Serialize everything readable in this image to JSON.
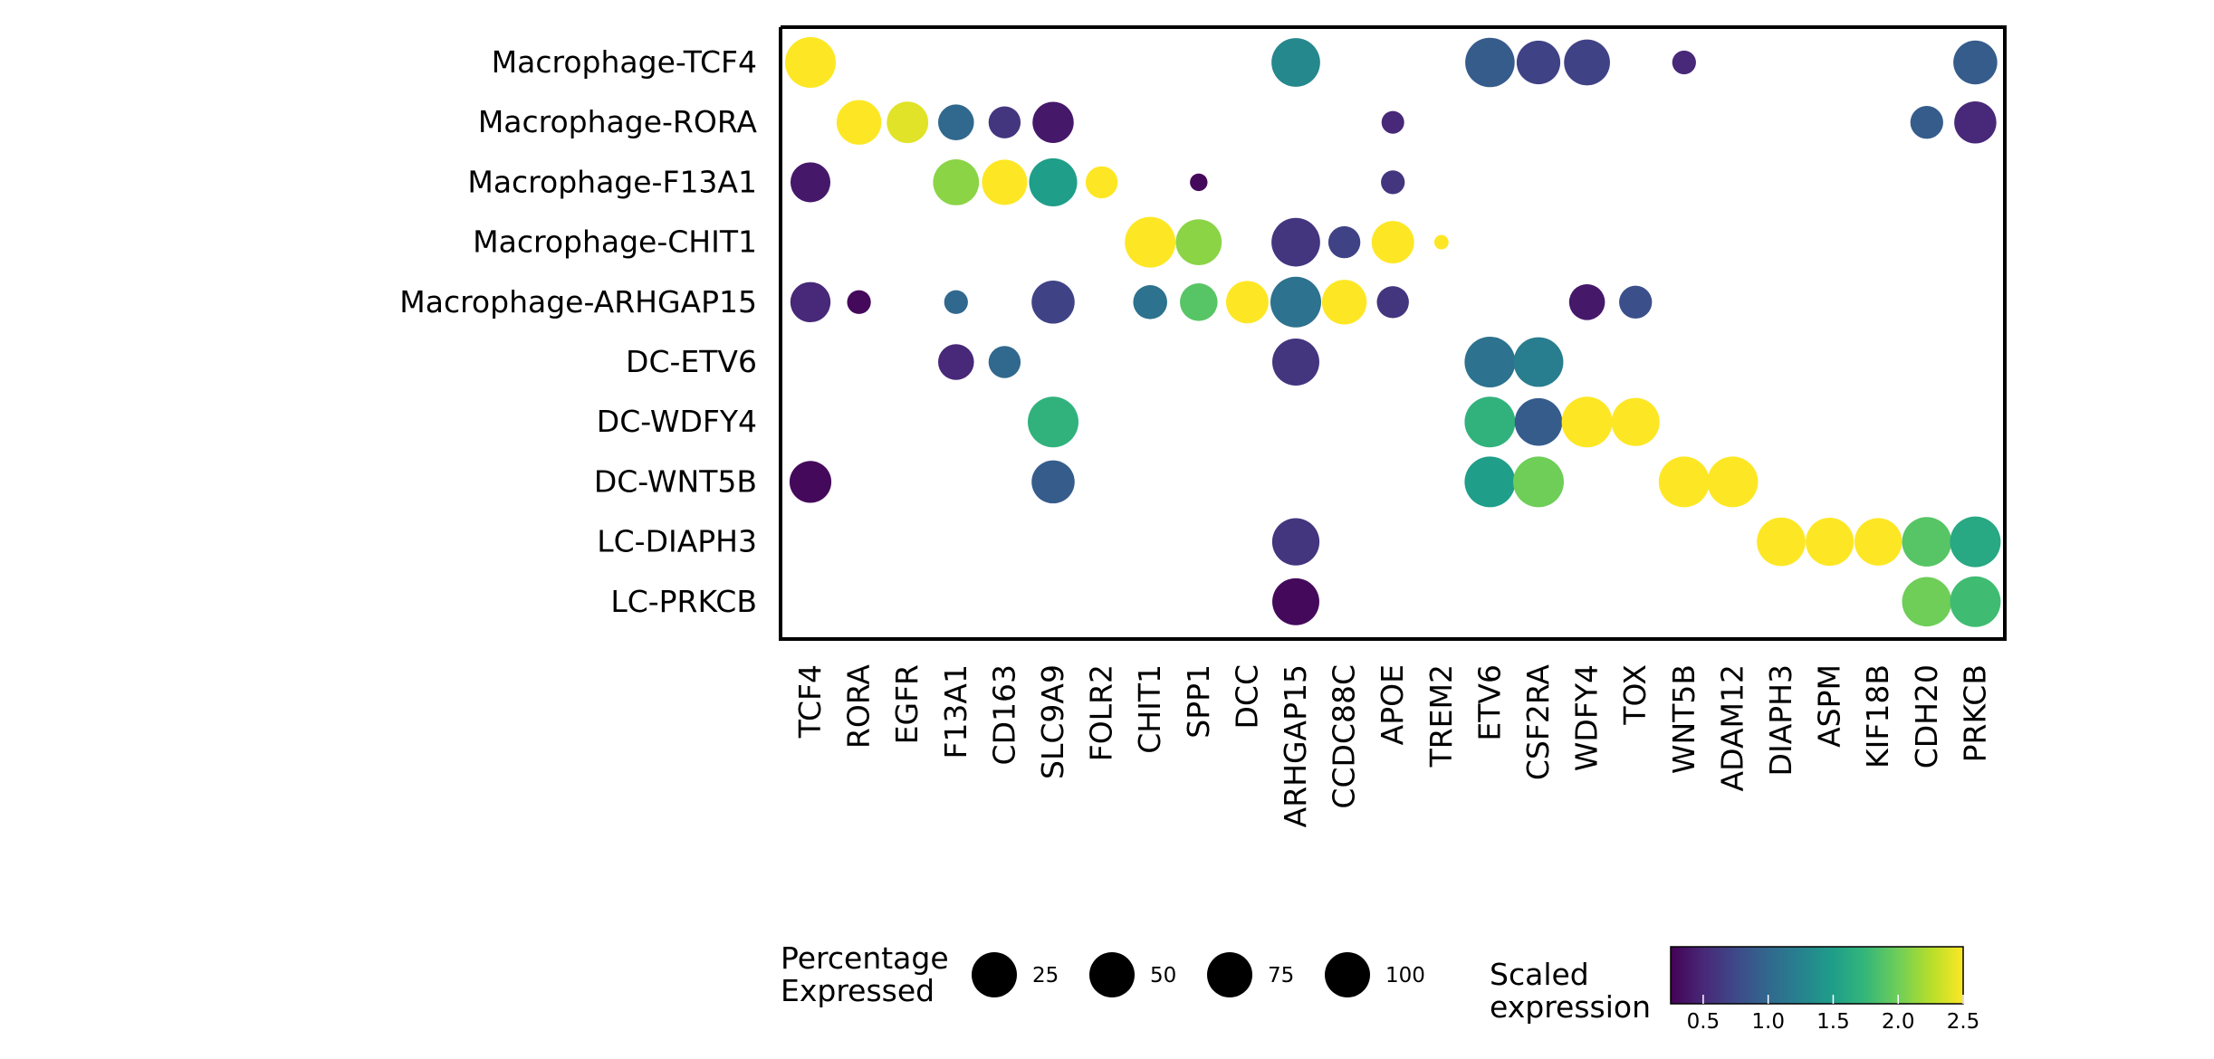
{
  "chart_data": {
    "type": "dotplot",
    "rows": [
      "Macrophage-TCF4",
      "Macrophage-RORA",
      "Macrophage-F13A1",
      "Macrophage-CHIT1",
      "Macrophage-ARHGAP15",
      "DC-ETV6",
      "DC-WDFY4",
      "DC-WNT5B",
      "LC-DIAPH3",
      "LC-PRKCB"
    ],
    "columns": [
      "TCF4",
      "RORA",
      "EGFR",
      "F13A1",
      "CD163",
      "SLC9A9",
      "FOLR2",
      "CHIT1",
      "SPP1",
      "DCC",
      "ARHGAP15",
      "CCDC88C",
      "APOE",
      "TREM2",
      "ETV6",
      "CSF2RA",
      "WDFY4",
      "TOX",
      "WNT5B",
      "ADAM12",
      "DIAPH3",
      "ASPM",
      "KIF18B",
      "CDH20",
      "PRKCB"
    ],
    "points": [
      {
        "row": "Macrophage-TCF4",
        "col": "TCF4",
        "pct": 100,
        "expr": 2.5
      },
      {
        "row": "Macrophage-TCF4",
        "col": "ARHGAP15",
        "pct": 92,
        "expr": 1.3
      },
      {
        "row": "Macrophage-TCF4",
        "col": "ETV6",
        "pct": 95,
        "expr": 0.9
      },
      {
        "row": "Macrophage-TCF4",
        "col": "CSF2RA",
        "pct": 74,
        "expr": 0.7
      },
      {
        "row": "Macrophage-TCF4",
        "col": "WDFY4",
        "pct": 82,
        "expr": 0.7
      },
      {
        "row": "Macrophage-TCF4",
        "col": "WNT5B",
        "pct": 22,
        "expr": 0.5
      },
      {
        "row": "Macrophage-TCF4",
        "col": "PRKCB",
        "pct": 75,
        "expr": 0.9
      },
      {
        "row": "Macrophage-RORA",
        "col": "RORA",
        "pct": 78,
        "expr": 2.5
      },
      {
        "row": "Macrophage-RORA",
        "col": "EGFR",
        "pct": 67,
        "expr": 2.4
      },
      {
        "row": "Macrophage-RORA",
        "col": "F13A1",
        "pct": 50,
        "expr": 1.0
      },
      {
        "row": "Macrophage-RORA",
        "col": "CD163",
        "pct": 40,
        "expr": 0.6
      },
      {
        "row": "Macrophage-RORA",
        "col": "SLC9A9",
        "pct": 66,
        "expr": 0.4
      },
      {
        "row": "Macrophage-RORA",
        "col": "APOE",
        "pct": 20,
        "expr": 0.5
      },
      {
        "row": "Macrophage-RORA",
        "col": "CDH20",
        "pct": 42,
        "expr": 0.9
      },
      {
        "row": "Macrophage-RORA",
        "col": "PRKCB",
        "pct": 69,
        "expr": 0.5
      },
      {
        "row": "Macrophage-F13A1",
        "col": "TCF4",
        "pct": 62,
        "expr": 0.4
      },
      {
        "row": "Macrophage-F13A1",
        "col": "F13A1",
        "pct": 82,
        "expr": 2.1
      },
      {
        "row": "Macrophage-F13A1",
        "col": "CD163",
        "pct": 80,
        "expr": 2.5
      },
      {
        "row": "Macrophage-F13A1",
        "col": "SLC9A9",
        "pct": 90,
        "expr": 1.5
      },
      {
        "row": "Macrophage-F13A1",
        "col": "FOLR2",
        "pct": 40,
        "expr": 2.5
      },
      {
        "row": "Macrophage-F13A1",
        "col": "SPP1",
        "pct": 12,
        "expr": 0.3
      },
      {
        "row": "Macrophage-F13A1",
        "col": "APOE",
        "pct": 22,
        "expr": 0.6
      },
      {
        "row": "Macrophage-CHIT1",
        "col": "CHIT1",
        "pct": 100,
        "expr": 2.5
      },
      {
        "row": "Macrophage-CHIT1",
        "col": "SPP1",
        "pct": 82,
        "expr": 2.1
      },
      {
        "row": "Macrophage-CHIT1",
        "col": "ARHGAP15",
        "pct": 92,
        "expr": 0.6
      },
      {
        "row": "Macrophage-CHIT1",
        "col": "CCDC88C",
        "pct": 40,
        "expr": 0.7
      },
      {
        "row": "Macrophage-CHIT1",
        "col": "APOE",
        "pct": 70,
        "expr": 2.5
      },
      {
        "row": "Macrophage-CHIT1",
        "col": "TREM2",
        "pct": 8,
        "expr": 2.5
      },
      {
        "row": "Macrophage-ARHGAP15",
        "col": "TCF4",
        "pct": 63,
        "expr": 0.5
      },
      {
        "row": "Macrophage-ARHGAP15",
        "col": "RORA",
        "pct": 22,
        "expr": 0.3
      },
      {
        "row": "Macrophage-ARHGAP15",
        "col": "F13A1",
        "pct": 22,
        "expr": 1.0
      },
      {
        "row": "Macrophage-ARHGAP15",
        "col": "SLC9A9",
        "pct": 72,
        "expr": 0.7
      },
      {
        "row": "Macrophage-ARHGAP15",
        "col": "CHIT1",
        "pct": 45,
        "expr": 1.1
      },
      {
        "row": "Macrophage-ARHGAP15",
        "col": "SPP1",
        "pct": 55,
        "expr": 1.9
      },
      {
        "row": "Macrophage-ARHGAP15",
        "col": "DCC",
        "pct": 70,
        "expr": 2.5
      },
      {
        "row": "Macrophage-ARHGAP15",
        "col": "ARHGAP15",
        "pct": 100,
        "expr": 1.1
      },
      {
        "row": "Macrophage-ARHGAP15",
        "col": "CCDC88C",
        "pct": 78,
        "expr": 2.5
      },
      {
        "row": "Macrophage-ARHGAP15",
        "col": "APOE",
        "pct": 40,
        "expr": 0.6
      },
      {
        "row": "Macrophage-ARHGAP15",
        "col": "WDFY4",
        "pct": 50,
        "expr": 0.4
      },
      {
        "row": "Macrophage-ARHGAP15",
        "col": "TOX",
        "pct": 42,
        "expr": 0.8
      },
      {
        "row": "DC-ETV6",
        "col": "F13A1",
        "pct": 50,
        "expr": 0.5
      },
      {
        "row": "DC-ETV6",
        "col": "CD163",
        "pct": 40,
        "expr": 1.0
      },
      {
        "row": "DC-ETV6",
        "col": "ARHGAP15",
        "pct": 86,
        "expr": 0.6
      },
      {
        "row": "DC-ETV6",
        "col": "ETV6",
        "pct": 100,
        "expr": 1.1
      },
      {
        "row": "DC-ETV6",
        "col": "CSF2RA",
        "pct": 96,
        "expr": 1.2
      },
      {
        "row": "DC-WDFY4",
        "col": "SLC9A9",
        "pct": 100,
        "expr": 1.7
      },
      {
        "row": "DC-WDFY4",
        "col": "ETV6",
        "pct": 100,
        "expr": 1.7
      },
      {
        "row": "DC-WDFY4",
        "col": "CSF2RA",
        "pct": 88,
        "expr": 0.9
      },
      {
        "row": "DC-WDFY4",
        "col": "WDFY4",
        "pct": 100,
        "expr": 2.5
      },
      {
        "row": "DC-WDFY4",
        "col": "TOX",
        "pct": 90,
        "expr": 2.5
      },
      {
        "row": "DC-WNT5B",
        "col": "TCF4",
        "pct": 68,
        "expr": 0.3
      },
      {
        "row": "DC-WNT5B",
        "col": "SLC9A9",
        "pct": 72,
        "expr": 0.9
      },
      {
        "row": "DC-WNT5B",
        "col": "ETV6",
        "pct": 100,
        "expr": 1.5
      },
      {
        "row": "DC-WNT5B",
        "col": "CSF2RA",
        "pct": 100,
        "expr": 2.0
      },
      {
        "row": "DC-WNT5B",
        "col": "WNT5B",
        "pct": 100,
        "expr": 2.5
      },
      {
        "row": "DC-WNT5B",
        "col": "ADAM12",
        "pct": 100,
        "expr": 2.5
      },
      {
        "row": "LC-DIAPH3",
        "col": "ARHGAP15",
        "pct": 87,
        "expr": 0.6
      },
      {
        "row": "LC-DIAPH3",
        "col": "DIAPH3",
        "pct": 92,
        "expr": 2.5
      },
      {
        "row": "LC-DIAPH3",
        "col": "ASPM",
        "pct": 90,
        "expr": 2.5
      },
      {
        "row": "LC-DIAPH3",
        "col": "KIF18B",
        "pct": 88,
        "expr": 2.5
      },
      {
        "row": "LC-DIAPH3",
        "col": "CDH20",
        "pct": 95,
        "expr": 1.9
      },
      {
        "row": "LC-DIAPH3",
        "col": "PRKCB",
        "pct": 100,
        "expr": 1.6
      },
      {
        "row": "LC-PRKCB",
        "col": "ARHGAP15",
        "pct": 86,
        "expr": 0.3
      },
      {
        "row": "LC-PRKCB",
        "col": "CDH20",
        "pct": 95,
        "expr": 2.0
      },
      {
        "row": "LC-PRKCB",
        "col": "PRKCB",
        "pct": 100,
        "expr": 1.8
      }
    ],
    "size_legend": {
      "title_line1": "Percentage",
      "title_line2": "Expressed",
      "values": [
        25,
        50,
        75,
        100
      ],
      "labels": [
        "25",
        "50",
        "75",
        "100"
      ]
    },
    "color_legend": {
      "title_line1": "Scaled",
      "title_line2": "expression",
      "colormap": "viridis",
      "range": [
        0.25,
        2.5
      ],
      "ticks": [
        0.5,
        1.0,
        1.5,
        2.0,
        2.5
      ],
      "tick_labels": [
        "0.5",
        "1.0",
        "1.5",
        "2.0",
        "2.5"
      ],
      "colors": [
        "#440154",
        "#482878",
        "#3e4989",
        "#31688e",
        "#26828e",
        "#1f9e89",
        "#35b779",
        "#6ece58",
        "#b5de2b",
        "#fde725"
      ]
    },
    "grid": false,
    "legend_position": "bottom"
  }
}
